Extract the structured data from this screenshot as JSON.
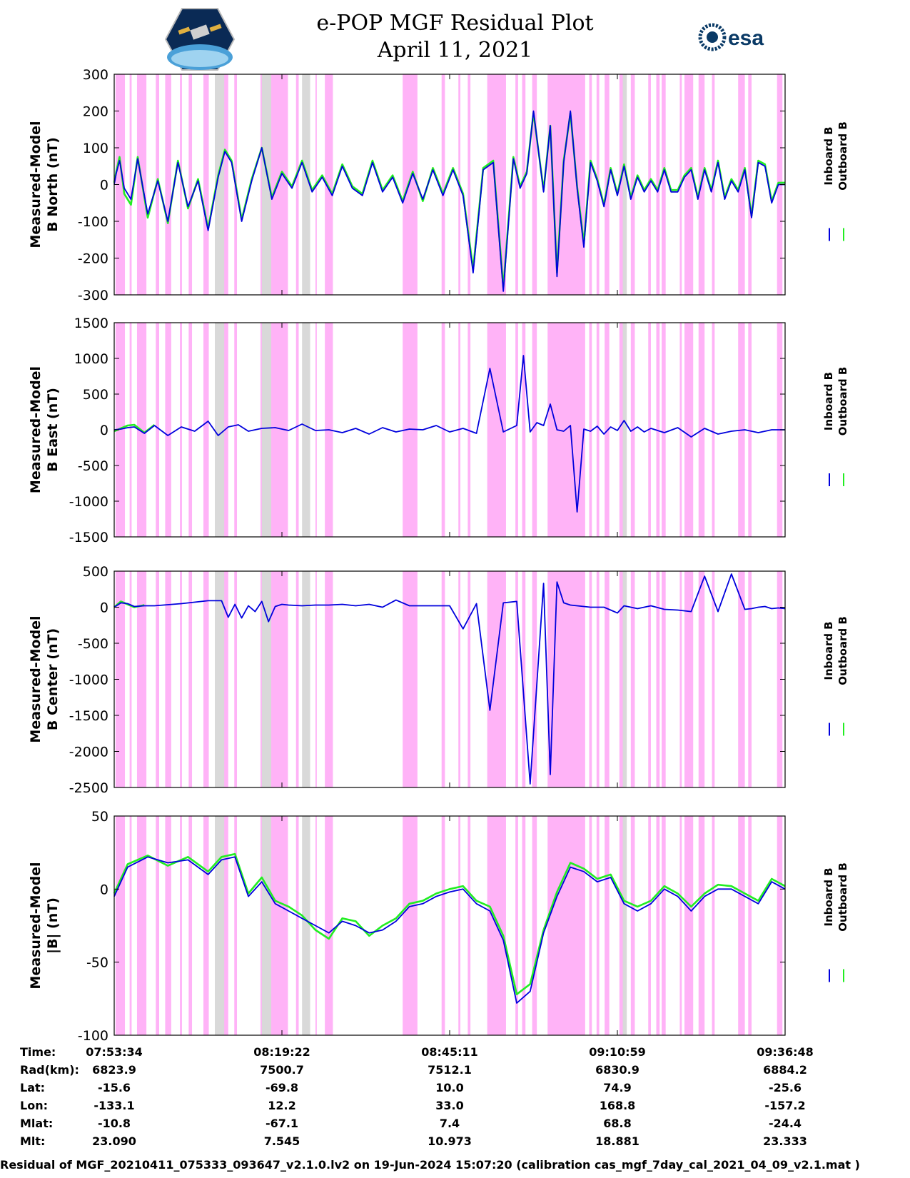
{
  "header": {
    "title_line1": "e-POP MGF Residual Plot",
    "title_line2": "April 11, 2021",
    "logo_right_text": "esa"
  },
  "legend": {
    "inboard": "Inboard B",
    "outboard": "Outboard B"
  },
  "colors": {
    "inboard": "#0000dd",
    "outboard": "#22ee22",
    "band_pink": "#ffb3f7",
    "band_gray": "#d9d9d9"
  },
  "chart_data": [
    {
      "type": "line",
      "ylabel": [
        "Measured-Model",
        "B North (nT)"
      ],
      "ylim": [
        -300,
        300
      ],
      "yticks": [
        300,
        200,
        100,
        0,
        -100,
        -200,
        -300
      ],
      "series": [
        {
          "name": "Inboard B",
          "x": [
            0,
            0.3,
            0.8,
            1.5,
            2.5,
            3.5,
            5,
            6.5,
            8,
            9.5,
            11,
            12.5,
            14,
            15.5,
            16.5,
            17.5,
            19,
            20.5,
            22,
            23.5,
            25,
            26.5,
            28,
            29.5,
            31,
            32.5,
            34,
            35.5,
            37,
            38.5,
            40,
            41.5,
            43,
            44.5,
            46,
            47.5,
            49,
            50.5,
            52,
            53.5,
            55,
            56.5,
            58,
            59.5,
            60.5,
            61.5,
            62.5,
            64,
            65,
            66,
            67,
            68,
            69,
            70,
            71,
            72,
            73,
            74,
            75,
            76,
            77,
            78,
            79,
            80,
            81,
            82,
            83,
            84,
            85,
            86,
            87,
            88,
            89,
            90,
            91,
            92,
            93,
            94,
            95,
            96,
            97,
            98,
            99,
            100
          ],
          "y": [
            0,
            30,
            65,
            -10,
            -40,
            70,
            -80,
            10,
            -100,
            60,
            -60,
            10,
            -125,
            20,
            90,
            60,
            -100,
            10,
            100,
            -40,
            30,
            -10,
            60,
            -20,
            20,
            -30,
            50,
            -10,
            -30,
            60,
            -20,
            20,
            -50,
            30,
            -40,
            40,
            -30,
            40,
            -30,
            -240,
            40,
            60,
            -290,
            70,
            -10,
            30,
            200,
            -20,
            160,
            -250,
            60,
            200,
            -10,
            -170,
            60,
            10,
            -60,
            40,
            -30,
            50,
            -40,
            20,
            -20,
            10,
            -20,
            40,
            -20,
            -20,
            20,
            40,
            -40,
            40,
            -20,
            60,
            -40,
            10,
            -20,
            40,
            -90,
            60,
            50,
            -50,
            0,
            0
          ]
        },
        {
          "name": "Outboard B",
          "x": [
            0,
            0.3,
            0.8,
            1.5,
            2.5,
            3.5,
            5,
            6.5,
            8,
            9.5,
            11,
            12.5,
            14,
            15.5,
            16.5,
            17.5,
            19,
            20.5,
            22,
            23.5,
            25,
            26.5,
            28,
            29.5,
            31,
            32.5,
            34,
            35.5,
            37,
            38.5,
            40,
            41.5,
            43,
            44.5,
            46,
            47.5,
            49,
            50.5,
            52,
            53.5,
            55,
            56.5,
            58,
            59.5,
            60.5,
            61.5,
            62.5,
            64,
            65,
            66,
            67,
            68,
            69,
            70,
            71,
            72,
            73,
            74,
            75,
            76,
            77,
            78,
            79,
            80,
            81,
            82,
            83,
            84,
            85,
            86,
            87,
            88,
            89,
            90,
            91,
            92,
            93,
            94,
            95,
            96,
            97,
            98,
            99,
            100
          ],
          "y": [
            5,
            35,
            75,
            -25,
            -55,
            75,
            -90,
            15,
            -105,
            65,
            -65,
            15,
            -120,
            25,
            95,
            65,
            -95,
            15,
            100,
            -35,
            35,
            -5,
            65,
            -15,
            25,
            -25,
            55,
            -5,
            -25,
            65,
            -15,
            25,
            -45,
            35,
            -45,
            45,
            -25,
            45,
            -25,
            -230,
            45,
            65,
            -280,
            75,
            -5,
            35,
            195,
            -15,
            160,
            -240,
            65,
            195,
            -5,
            -160,
            65,
            15,
            -55,
            45,
            -25,
            55,
            -35,
            25,
            -15,
            15,
            -15,
            45,
            -15,
            -15,
            25,
            45,
            -35,
            45,
            -15,
            65,
            -35,
            15,
            -15,
            45,
            -85,
            65,
            55,
            -45,
            5,
            5
          ]
        }
      ]
    },
    {
      "type": "line",
      "ylabel": [
        "Measured-Model",
        "B East (nT)"
      ],
      "ylim": [
        -1500,
        1500
      ],
      "yticks": [
        1500,
        1000,
        500,
        0,
        -500,
        -1000,
        -1500
      ],
      "series": [
        {
          "name": "Inboard B",
          "x": [
            0,
            1,
            2,
            3,
            4.5,
            6,
            8,
            10,
            12,
            14,
            15.5,
            17,
            18.5,
            20,
            22,
            24,
            26,
            28,
            30,
            32,
            34,
            36,
            38,
            40,
            42,
            44,
            46,
            48,
            50,
            52,
            54,
            56,
            58,
            60,
            61,
            62,
            63,
            64,
            65,
            66,
            67,
            68,
            69,
            70,
            71,
            72,
            73,
            74,
            75,
            76,
            77,
            78,
            79,
            80,
            82,
            84,
            86,
            88,
            90,
            92,
            94,
            96,
            98,
            100
          ],
          "y": [
            0,
            10,
            30,
            40,
            -50,
            60,
            -80,
            40,
            -20,
            120,
            -80,
            40,
            70,
            -20,
            20,
            30,
            -10,
            80,
            -10,
            0,
            -40,
            20,
            -60,
            30,
            -30,
            10,
            0,
            60,
            -30,
            20,
            -50,
            860,
            -30,
            60,
            1040,
            -30,
            100,
            60,
            360,
            0,
            -20,
            60,
            -1150,
            10,
            -20,
            50,
            -60,
            40,
            -10,
            130,
            -20,
            40,
            -30,
            20,
            -40,
            30,
            -100,
            20,
            -60,
            -20,
            0,
            -40,
            0,
            0
          ]
        },
        {
          "name": "Outboard B",
          "x": [
            0,
            1,
            2,
            3,
            4.5,
            6
          ],
          "y": [
            -20,
            20,
            60,
            70,
            -40,
            70
          ]
        }
      ]
    },
    {
      "type": "line",
      "ylabel": [
        "Measured-Model",
        "B Center (nT)"
      ],
      "ylim": [
        -2500,
        500
      ],
      "yticks": [
        500,
        0,
        -500,
        -1000,
        -1500,
        -2000,
        -2500
      ],
      "series": [
        {
          "name": "Inboard B",
          "x": [
            0,
            1,
            2,
            3,
            4.5,
            6,
            10,
            14,
            16,
            17,
            18,
            19,
            20,
            21,
            22,
            23,
            24,
            25,
            26,
            28,
            30,
            32,
            34,
            36,
            38,
            40,
            42,
            44,
            46,
            48,
            50,
            52,
            54,
            56,
            58,
            60,
            62,
            64,
            65,
            66,
            67,
            68,
            69,
            70,
            71,
            72,
            73,
            74,
            75,
            76,
            78,
            80,
            82,
            84,
            86,
            88,
            90,
            92,
            94,
            95,
            96,
            97,
            98,
            99,
            100
          ],
          "y": [
            0,
            60,
            50,
            10,
            20,
            20,
            50,
            90,
            90,
            -140,
            40,
            -150,
            20,
            -60,
            80,
            -200,
            10,
            40,
            30,
            20,
            30,
            30,
            40,
            20,
            40,
            0,
            100,
            20,
            20,
            20,
            20,
            -300,
            50,
            -1430,
            60,
            80,
            -2450,
            330,
            -2320,
            350,
            60,
            30,
            20,
            10,
            0,
            0,
            0,
            -40,
            -80,
            20,
            -20,
            20,
            -30,
            -40,
            -60,
            430,
            -60,
            460,
            -30,
            -20,
            0,
            10,
            -20,
            -10,
            -20
          ]
        },
        {
          "name": "Outboard B",
          "x": [
            0,
            1,
            2,
            3,
            4.5
          ],
          "y": [
            0,
            80,
            40,
            0,
            30
          ]
        }
      ]
    },
    {
      "type": "line",
      "ylabel": [
        "Measured-Model",
        "|B| (nT)"
      ],
      "ylim": [
        -100,
        50
      ],
      "yticks": [
        50,
        0,
        -50,
        -100
      ],
      "series": [
        {
          "name": "Inboard B",
          "x": [
            0,
            2,
            5,
            8,
            11,
            14,
            16,
            18,
            20,
            22,
            24,
            26,
            28,
            30,
            32,
            34,
            36,
            38,
            40,
            42,
            44,
            46,
            48,
            50,
            52,
            54,
            56,
            58,
            60,
            62,
            64,
            66,
            68,
            70,
            72,
            74,
            76,
            78,
            80,
            82,
            84,
            86,
            88,
            90,
            92,
            94,
            96,
            98,
            100
          ],
          "y": [
            -5,
            15,
            22,
            18,
            20,
            10,
            20,
            22,
            -5,
            5,
            -10,
            -15,
            -20,
            -25,
            -30,
            -22,
            -25,
            -30,
            -28,
            -22,
            -12,
            -10,
            -5,
            -2,
            0,
            -10,
            -15,
            -35,
            -78,
            -70,
            -30,
            -5,
            15,
            12,
            5,
            8,
            -10,
            -15,
            -10,
            0,
            -5,
            -15,
            -5,
            0,
            0,
            -5,
            -10,
            5,
            0
          ]
        },
        {
          "name": "Outboard B",
          "x": [
            0,
            2,
            5,
            8,
            11,
            14,
            16,
            18,
            20,
            22,
            24,
            26,
            28,
            30,
            32,
            34,
            36,
            38,
            40,
            42,
            44,
            46,
            48,
            50,
            52,
            54,
            56,
            58,
            60,
            62,
            64,
            66,
            68,
            70,
            72,
            74,
            76,
            78,
            80,
            82,
            84,
            86,
            88,
            90,
            92,
            94,
            96,
            98,
            100
          ],
          "y": [
            -3,
            17,
            23,
            16,
            22,
            12,
            22,
            24,
            -3,
            8,
            -8,
            -12,
            -18,
            -28,
            -34,
            -20,
            -22,
            -32,
            -25,
            -20,
            -10,
            -8,
            -3,
            0,
            2,
            -8,
            -12,
            -32,
            -72,
            -65,
            -28,
            -2,
            18,
            14,
            7,
            10,
            -8,
            -12,
            -8,
            2,
            -3,
            -12,
            -3,
            3,
            2,
            -3,
            -8,
            7,
            2
          ]
        }
      ]
    }
  ],
  "bands": {
    "pink": [
      [
        0.2,
        1.6
      ],
      [
        2.3,
        2.6
      ],
      [
        3.4,
        4.8
      ],
      [
        6.2,
        6.7
      ],
      [
        7.6,
        8.5
      ],
      [
        9.8,
        10.1
      ],
      [
        11.1,
        11.6
      ],
      [
        13.3,
        14.1
      ],
      [
        15.6,
        17.0
      ],
      [
        17.9,
        18.3
      ],
      [
        21.8,
        25.9
      ],
      [
        27.1,
        27.5
      ],
      [
        28.5,
        29.0
      ],
      [
        30.0,
        30.2
      ],
      [
        31.4,
        32.6
      ],
      [
        43.0,
        45.2
      ],
      [
        48.8,
        49.3
      ],
      [
        51.3,
        51.6
      ],
      [
        52.7,
        53.1
      ],
      [
        55.6,
        58.4
      ],
      [
        59.8,
        60.2
      ],
      [
        60.8,
        61.3
      ],
      [
        62.3,
        63.0
      ],
      [
        64.6,
        70.2
      ],
      [
        70.8,
        71.2
      ],
      [
        71.9,
        72.3
      ],
      [
        73.1,
        73.8
      ],
      [
        75.3,
        76.2
      ],
      [
        77.0,
        77.6
      ],
      [
        79.6,
        80.0
      ],
      [
        80.8,
        81.3
      ],
      [
        81.6,
        82.2
      ],
      [
        84.3,
        84.6
      ],
      [
        85.0,
        86.3
      ],
      [
        87.1,
        88.0
      ],
      [
        89.1,
        89.5
      ],
      [
        93.0,
        94.0
      ],
      [
        94.5,
        95.0
      ],
      [
        98.8,
        99.6
      ]
    ],
    "gray": [
      [
        15.0,
        16.4
      ],
      [
        22.0,
        23.4
      ],
      [
        28.0,
        29.2
      ],
      [
        75.8,
        76.4
      ]
    ]
  },
  "time_axis": {
    "labels": [
      "Time:",
      "Rad(km):",
      "Lat:",
      "Lon:",
      "Mlat:",
      "Mlt:"
    ],
    "columns": [
      {
        "time": "07:53:34",
        "rad": "6823.9",
        "lat": "-15.6",
        "lon": "-133.1",
        "mlat": "-10.8",
        "mlt": "23.090"
      },
      {
        "time": "08:19:22",
        "rad": "7500.7",
        "lat": "-69.8",
        "lon": "12.2",
        "mlat": "-67.1",
        "mlt": "7.545"
      },
      {
        "time": "08:45:11",
        "rad": "7512.1",
        "lat": "10.0",
        "lon": "33.0",
        "mlat": "7.4",
        "mlt": "10.973"
      },
      {
        "time": "09:10:59",
        "rad": "6830.9",
        "lat": "74.9",
        "lon": "168.8",
        "mlat": "68.8",
        "mlt": "18.881"
      },
      {
        "time": "09:36:48",
        "rad": "6884.2",
        "lat": "-25.6",
        "lon": "-157.2",
        "mlat": "-24.4",
        "mlt": "23.333"
      }
    ]
  },
  "footer": {
    "caption": "Residual of MGF_20210411_075333_093647_v2.1.0.lv2 on 19-Jun-2024 15:07:20 (calibration cas_mgf_7day_cal_2021_04_09_v2.1.mat )"
  }
}
